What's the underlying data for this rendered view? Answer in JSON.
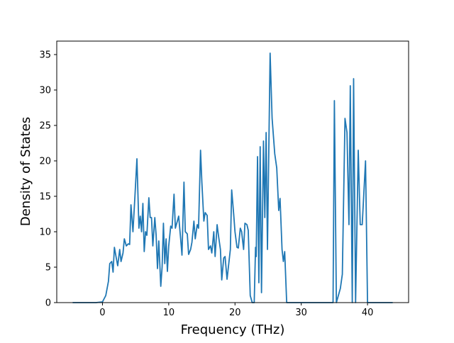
{
  "chart_data": {
    "type": "line",
    "xlabel": "Frequency (THz)",
    "ylabel": "Density of States",
    "x": [
      -4.5,
      -1,
      0,
      0.5,
      0.9,
      1.1,
      1.4,
      1.6,
      1.8,
      2.1,
      2.3,
      2.6,
      2.8,
      3.1,
      3.3,
      3.6,
      3.9,
      4.1,
      4.3,
      4.6,
      4.9,
      5.2,
      5.5,
      5.7,
      5.9,
      6.1,
      6.3,
      6.5,
      6.7,
      7.0,
      7.2,
      7.4,
      7.6,
      7.9,
      8.1,
      8.3,
      8.5,
      8.8,
      9.0,
      9.2,
      9.4,
      9.6,
      9.8,
      10.0,
      10.3,
      10.5,
      10.8,
      11.0,
      11.3,
      11.5,
      11.8,
      12.0,
      12.3,
      12.5,
      12.8,
      13.0,
      13.3,
      13.5,
      13.8,
      14.0,
      14.3,
      14.5,
      14.8,
      15.0,
      15.3,
      15.5,
      15.8,
      16.0,
      16.3,
      16.5,
      16.8,
      17.0,
      17.3,
      17.5,
      17.8,
      18.0,
      18.3,
      18.5,
      18.8,
      19.0,
      19.3,
      19.5,
      19.8,
      20.0,
      20.3,
      20.5,
      20.8,
      21.0,
      21.3,
      21.5,
      21.8,
      22.0,
      22.3,
      22.6,
      22.9,
      23.1,
      23.2,
      23.4,
      23.6,
      23.8,
      24.0,
      24.3,
      24.5,
      24.7,
      24.9,
      25.3,
      25.6,
      26.0,
      26.3,
      26.6,
      26.8,
      27.1,
      27.3,
      27.5,
      27.8,
      34.8,
      35.0,
      35.3,
      35.9,
      36.2,
      36.6,
      36.9,
      37.2,
      37.4,
      37.7,
      37.9,
      38.2,
      38.6,
      38.9,
      39.2,
      39.7,
      40.0,
      43.8
    ],
    "series": [
      {
        "color": "#1f77b4",
        "values": [
          0,
          0,
          0.1,
          1,
          3,
          5.5,
          5.8,
          4.3,
          7.8,
          6.2,
          5.2,
          7.5,
          5.8,
          7,
          9,
          8,
          8.3,
          8.2,
          13.8,
          10,
          15,
          20.3,
          10.5,
          12.2,
          10,
          14,
          7.2,
          10,
          9.5,
          14.8,
          12,
          12,
          8,
          12,
          9.5,
          4.8,
          8.7,
          2.3,
          5,
          11.2,
          5.5,
          9,
          4.4,
          8,
          10.8,
          10.5,
          15.3,
          10.5,
          11.5,
          12.2,
          9,
          6.7,
          17,
          10,
          9.7,
          6.8,
          7.5,
          8.5,
          11.5,
          9,
          11,
          10.5,
          21.5,
          17,
          11.5,
          12.7,
          12.3,
          7.5,
          8,
          7,
          10,
          6.5,
          11,
          9.5,
          7.5,
          3.2,
          6.3,
          6.5,
          3.3,
          5,
          7.5,
          15.9,
          12.5,
          10,
          7.8,
          7.7,
          10.5,
          10,
          7.5,
          11.2,
          11,
          10.2,
          1,
          0,
          0,
          7.8,
          6.5,
          20.6,
          2.8,
          22,
          1.4,
          22.8,
          12,
          24,
          7.5,
          35.2,
          26,
          21,
          19,
          13,
          14.7,
          7.5,
          5.8,
          7.2,
          0,
          0,
          28.5,
          0,
          2,
          4,
          26,
          24,
          11,
          30.6,
          0,
          31.6,
          0,
          21.5,
          11,
          11,
          20,
          0,
          0
        ]
      }
    ],
    "xlim": [
      -6.9,
      46.2
    ],
    "ylim": [
      0,
      36.9
    ],
    "xticks": [
      0,
      10,
      20,
      30,
      40
    ],
    "yticks": [
      0,
      5,
      10,
      15,
      20,
      25,
      30,
      35
    ]
  }
}
